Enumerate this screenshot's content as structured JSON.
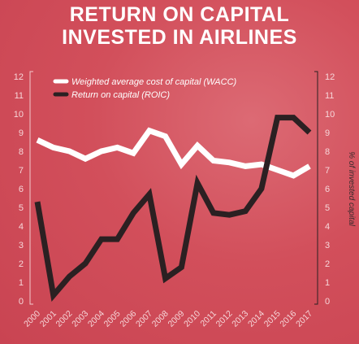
{
  "title": {
    "line1": "RETURN ON CAPITAL",
    "line2": "INVESTED IN AIRLINES"
  },
  "chart_data": {
    "type": "line",
    "x": [
      "2000",
      "2001",
      "2002",
      "2003",
      "2004",
      "2005",
      "2006",
      "2007",
      "2008",
      "2009",
      "2010",
      "2011",
      "2012",
      "2013",
      "2014",
      "2015",
      "2016",
      "2017"
    ],
    "series": [
      {
        "name": "Weighted average cost of capital (WACC)",
        "color": "#ffffff",
        "values": [
          8.6,
          8.2,
          8.0,
          7.6,
          8.0,
          8.2,
          7.9,
          9.1,
          8.8,
          7.3,
          8.3,
          7.5,
          7.4,
          7.2,
          7.3,
          7.0,
          6.7,
          7.2
        ]
      },
      {
        "name": "Return on capital (ROIC)",
        "color": "#2b2022",
        "values": [
          5.3,
          0.3,
          1.3,
          2.0,
          3.3,
          3.3,
          4.7,
          5.7,
          1.2,
          1.8,
          6.3,
          4.7,
          4.6,
          4.8,
          6.0,
          9.8,
          9.8,
          9.0
        ]
      }
    ],
    "ylim": [
      0,
      12
    ],
    "yticks": [
      "0",
      "1",
      "2",
      "3",
      "4",
      "5",
      "6",
      "7",
      "8",
      "9",
      "10",
      "11",
      "12"
    ],
    "ylabel_right": "% of invested capital",
    "legend_position": "top-left",
    "grid": false
  }
}
